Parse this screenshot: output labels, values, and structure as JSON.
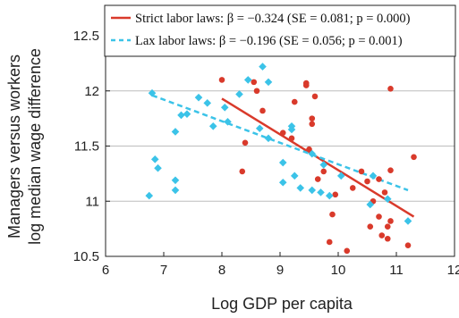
{
  "chart_data": {
    "type": "scatter",
    "xlabel": "Log GDP per capita",
    "ylabel_lines": [
      "Managers versus workers",
      "log median wage difference"
    ],
    "xlim": [
      6,
      12
    ],
    "ylim": [
      10.5,
      12.5
    ],
    "x_ticks": [
      6,
      7,
      8,
      9,
      10,
      11,
      12
    ],
    "y_ticks": [
      10.5,
      11,
      11.5,
      12,
      12.5
    ],
    "y_tick_labels": [
      "10.5",
      "11",
      "11.5",
      "12",
      "12.5"
    ],
    "grid": "horizontal",
    "legend_position": "top-right",
    "series": [
      {
        "name": "Strict labor laws: β = −0.324 (SE = 0.081; p = 0.000)",
        "marker": "circle",
        "color": "#d93a2b",
        "fit_line": {
          "x": [
            8.0,
            11.3
          ],
          "y": [
            11.93,
            10.86
          ],
          "style": "solid"
        },
        "points": [
          [
            8.0,
            12.1
          ],
          [
            8.35,
            11.27
          ],
          [
            8.4,
            11.53
          ],
          [
            8.55,
            12.08
          ],
          [
            8.6,
            12.0
          ],
          [
            8.7,
            11.82
          ],
          [
            9.05,
            11.62
          ],
          [
            9.2,
            11.57
          ],
          [
            9.25,
            11.9
          ],
          [
            9.45,
            12.05
          ],
          [
            9.45,
            12.07
          ],
          [
            9.5,
            11.47
          ],
          [
            9.55,
            11.75
          ],
          [
            9.55,
            11.7
          ],
          [
            9.6,
            11.95
          ],
          [
            9.65,
            11.2
          ],
          [
            9.75,
            11.27
          ],
          [
            9.85,
            10.63
          ],
          [
            9.9,
            10.88
          ],
          [
            9.95,
            11.06
          ],
          [
            10.15,
            10.55
          ],
          [
            10.25,
            11.12
          ],
          [
            10.4,
            11.27
          ],
          [
            10.5,
            11.18
          ],
          [
            10.55,
            10.77
          ],
          [
            10.6,
            11.0
          ],
          [
            10.7,
            11.2
          ],
          [
            10.7,
            10.86
          ],
          [
            10.75,
            10.69
          ],
          [
            10.8,
            11.08
          ],
          [
            10.85,
            10.66
          ],
          [
            10.85,
            10.77
          ],
          [
            10.9,
            10.82
          ],
          [
            10.9,
            11.28
          ],
          [
            10.9,
            12.02
          ],
          [
            11.2,
            10.6
          ],
          [
            11.3,
            11.4
          ]
        ]
      },
      {
        "name": "Lax labor laws: β = −0.196 (SE = 0.056; p = 0.001)",
        "marker": "diamond",
        "color": "#3bc3e8",
        "fit_line": {
          "x": [
            6.8,
            11.2
          ],
          "y": [
            11.96,
            11.1
          ],
          "style": "dashed"
        },
        "points": [
          [
            6.75,
            11.05
          ],
          [
            6.8,
            11.98
          ],
          [
            6.85,
            11.38
          ],
          [
            6.9,
            11.3
          ],
          [
            7.2,
            11.19
          ],
          [
            7.2,
            11.1
          ],
          [
            7.2,
            11.63
          ],
          [
            7.3,
            11.78
          ],
          [
            7.4,
            11.79
          ],
          [
            7.6,
            11.94
          ],
          [
            7.75,
            11.89
          ],
          [
            7.85,
            11.68
          ],
          [
            8.05,
            11.85
          ],
          [
            8.1,
            11.72
          ],
          [
            8.3,
            11.97
          ],
          [
            8.45,
            12.1
          ],
          [
            8.65,
            11.66
          ],
          [
            8.7,
            12.22
          ],
          [
            8.8,
            11.57
          ],
          [
            8.8,
            12.08
          ],
          [
            9.05,
            11.35
          ],
          [
            9.05,
            11.17
          ],
          [
            9.2,
            11.68
          ],
          [
            9.2,
            11.65
          ],
          [
            9.25,
            11.23
          ],
          [
            9.35,
            11.12
          ],
          [
            9.55,
            11.43
          ],
          [
            9.55,
            11.1
          ],
          [
            9.7,
            11.08
          ],
          [
            9.75,
            11.33
          ],
          [
            9.85,
            11.05
          ],
          [
            10.05,
            11.23
          ],
          [
            10.55,
            10.97
          ],
          [
            10.6,
            11.23
          ],
          [
            10.85,
            11.02
          ],
          [
            11.2,
            10.82
          ]
        ]
      }
    ]
  }
}
